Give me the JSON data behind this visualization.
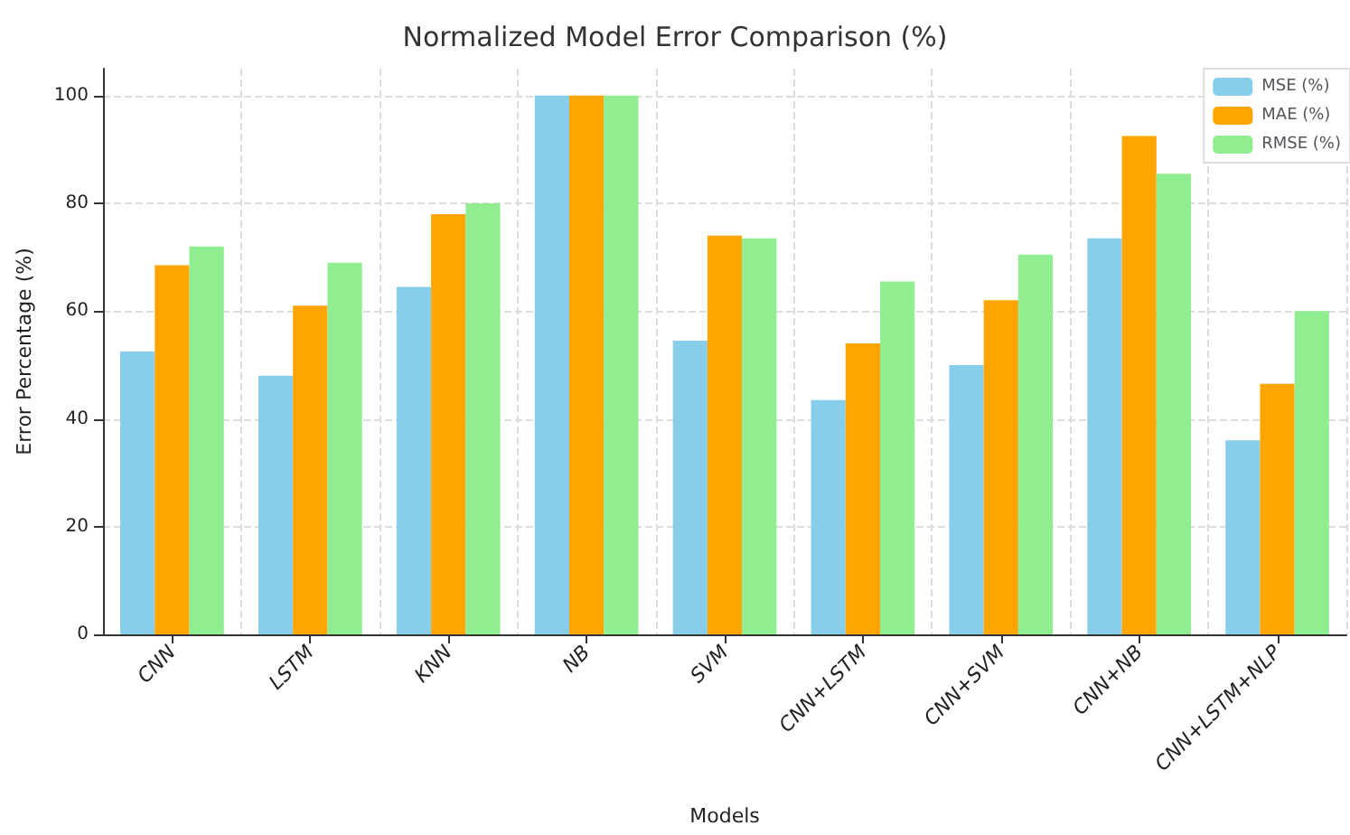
{
  "chart_data": {
    "type": "bar",
    "title": "Normalized Model Error Comparison (%)",
    "xlabel": "Models",
    "ylabel": "Error Percentage (%)",
    "categories": [
      "CNN",
      "LSTM",
      "KNN",
      "NB",
      "SVM",
      "CNN+LSTM",
      "CNN+SVM",
      "CNN+NB",
      "CNN+LSTM+NLP"
    ],
    "series": [
      {
        "name": "MSE (%)",
        "color": "#87ceeb",
        "values": [
          52.5,
          48,
          64.5,
          100,
          54.5,
          43.5,
          50,
          73.5,
          36
        ]
      },
      {
        "name": "MAE (%)",
        "color": "#ffa500",
        "values": [
          68.5,
          61,
          78,
          100,
          74,
          54,
          62,
          92.5,
          46.5
        ]
      },
      {
        "name": "RMSE (%)",
        "color": "#90ee90",
        "values": [
          72,
          69,
          80,
          100,
          73.5,
          65.5,
          70.5,
          85.5,
          60
        ]
      }
    ],
    "ylim": [
      0,
      105
    ],
    "yticks": [
      0,
      20,
      40,
      60,
      80,
      100
    ],
    "grid": true,
    "legend": "top right"
  }
}
